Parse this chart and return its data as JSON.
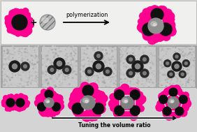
{
  "bg_color": "#d4d4d4",
  "top_bg": "#f2f2f2",
  "mid_bg": "#c0c0c0",
  "pink": "#ff0090",
  "dark": "#0d0d0d",
  "med_gray": "#808080",
  "light_gray": "#c8c8c8",
  "white": "#ffffff",
  "polymerization_text": "polymerization",
  "bottom_text": "Tuning the volume ratio",
  "fig_width": 2.82,
  "fig_height": 1.89,
  "dpi": 100
}
